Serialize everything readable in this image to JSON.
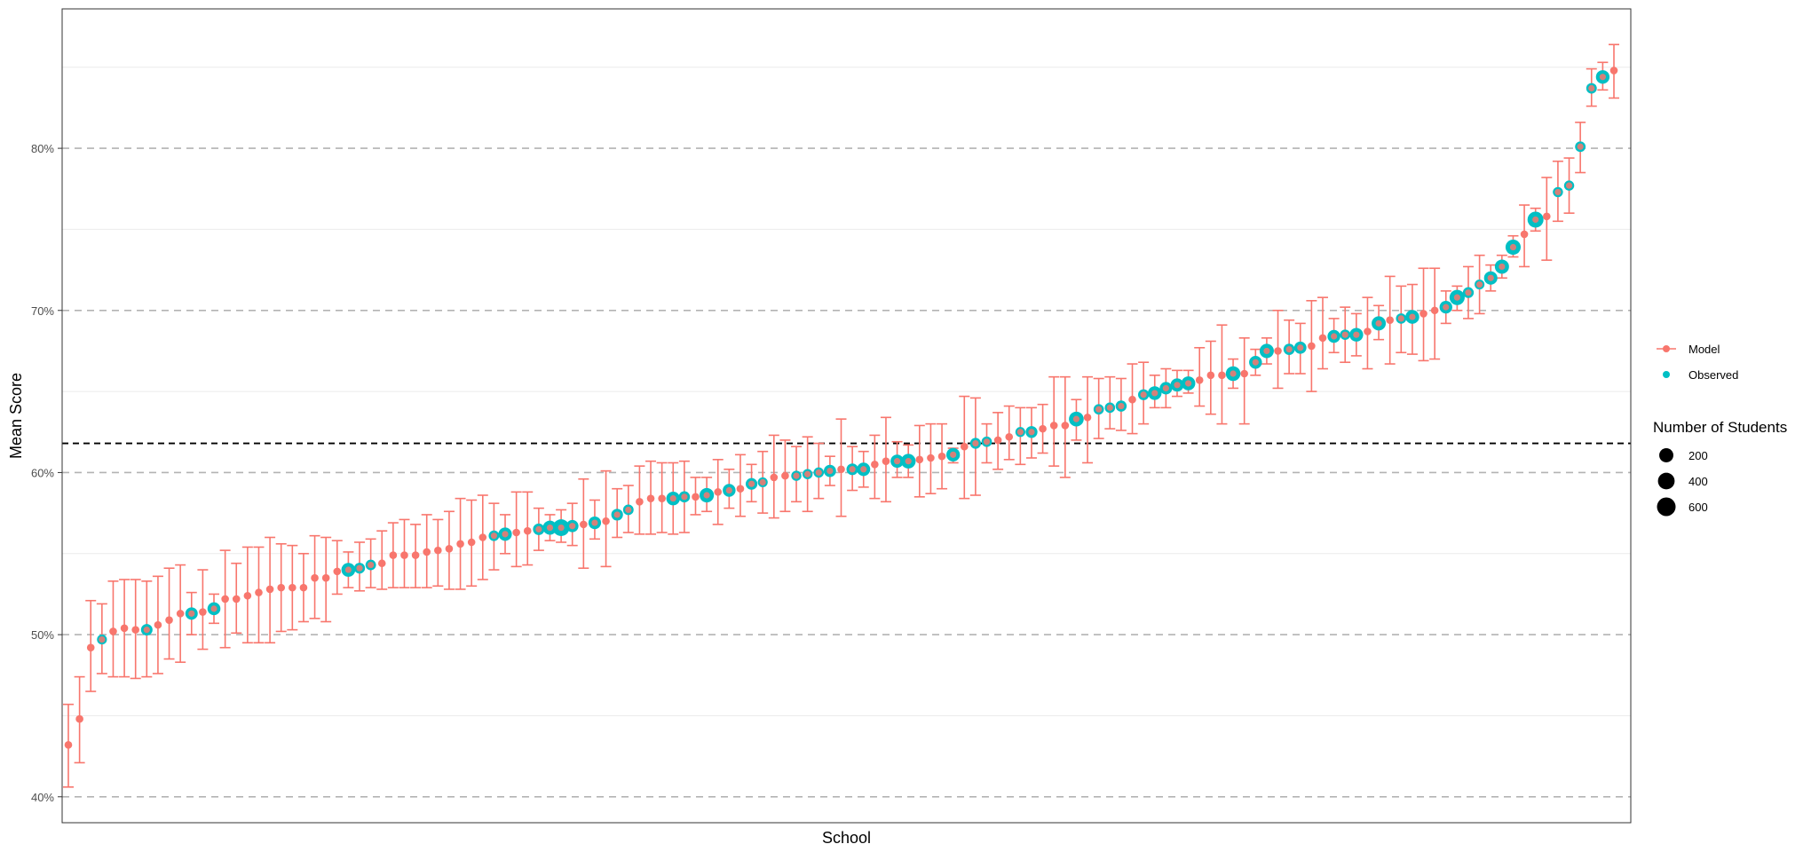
{
  "chart_data": {
    "type": "scatter",
    "xlabel": "School",
    "ylabel": "Mean Score",
    "ylim": [
      38.4,
      88.6
    ],
    "yticks": [
      40,
      50,
      60,
      70,
      80
    ],
    "ytick_labels": [
      "40%",
      "50%",
      "60%",
      "70%",
      "80%"
    ],
    "grid": "horizontal",
    "reference_line": 61.8,
    "legend_position": "right",
    "series": [
      {
        "name": "Model",
        "color": "#F8766D"
      },
      {
        "name": "Observed",
        "color": "#00BFC4"
      }
    ],
    "size_legend": {
      "title": "Number of Students",
      "breaks": [
        200,
        400,
        600
      ],
      "labels": [
        "200",
        "400",
        "600"
      ]
    },
    "model": [
      43.2,
      44.8,
      49.2,
      49.7,
      50.2,
      50.4,
      50.3,
      50.3,
      50.6,
      50.9,
      51.3,
      51.3,
      51.4,
      51.6,
      52.2,
      52.2,
      52.4,
      52.6,
      52.8,
      52.9,
      52.9,
      52.9,
      53.5,
      53.5,
      53.9,
      54.0,
      54.1,
      54.3,
      54.4,
      54.9,
      54.9,
      54.9,
      55.1,
      55.2,
      55.3,
      55.6,
      55.7,
      56.0,
      56.1,
      56.2,
      56.3,
      56.4,
      56.5,
      56.6,
      56.6,
      56.7,
      56.8,
      56.9,
      57.0,
      57.4,
      57.7,
      58.2,
      58.4,
      58.4,
      58.4,
      58.5,
      58.5,
      58.6,
      58.8,
      58.9,
      59.0,
      59.3,
      59.4,
      59.7,
      59.8,
      59.8,
      59.9,
      60.0,
      60.1,
      60.2,
      60.2,
      60.2,
      60.5,
      60.7,
      60.7,
      60.7,
      60.8,
      60.9,
      61.0,
      61.1,
      61.6,
      61.8,
      61.9,
      62.0,
      62.2,
      62.5,
      62.5,
      62.7,
      62.9,
      62.9,
      63.3,
      63.4,
      63.9,
      64.0,
      64.1,
      64.5,
      64.8,
      64.9,
      65.2,
      65.4,
      65.5,
      65.7,
      66.0,
      66.0,
      66.1,
      66.1,
      66.8,
      67.5,
      67.5,
      67.6,
      67.7,
      67.8,
      68.3,
      68.4,
      68.5,
      68.5,
      68.7,
      69.2,
      69.4,
      69.5,
      69.6,
      69.8,
      70.0,
      70.2,
      70.8,
      71.1,
      71.6,
      72.0,
      72.7,
      73.9,
      74.7,
      75.6,
      75.8,
      77.3,
      77.7,
      80.1,
      83.7,
      84.4,
      84.8
    ],
    "lower": [
      40.6,
      42.1,
      46.5,
      47.6,
      47.4,
      47.4,
      47.3,
      47.4,
      47.6,
      48.5,
      48.3,
      50.0,
      49.1,
      50.7,
      49.2,
      50.1,
      49.5,
      49.5,
      49.5,
      50.2,
      50.3,
      50.8,
      51.0,
      50.8,
      52.5,
      52.9,
      52.7,
      52.9,
      52.8,
      52.9,
      52.9,
      52.9,
      52.9,
      53.0,
      52.8,
      52.8,
      53.0,
      53.4,
      54.0,
      55.0,
      54.2,
      54.3,
      55.2,
      55.8,
      55.7,
      55.5,
      54.1,
      55.9,
      54.2,
      56.0,
      56.3,
      56.2,
      56.2,
      56.3,
      56.2,
      56.3,
      57.4,
      57.6,
      56.8,
      57.8,
      57.3,
      58.2,
      57.5,
      57.2,
      57.6,
      58.2,
      57.6,
      58.4,
      59.2,
      57.3,
      58.9,
      59.1,
      58.4,
      58.2,
      59.7,
      59.7,
      58.5,
      58.7,
      59.0,
      60.6,
      58.4,
      58.6,
      60.6,
      60.2,
      60.8,
      60.5,
      60.9,
      61.2,
      60.4,
      59.7,
      62.0,
      60.6,
      62.1,
      62.7,
      62.6,
      62.4,
      63.0,
      64.0,
      64.0,
      64.7,
      64.9,
      64.1,
      63.6,
      63.0,
      65.2,
      63.0,
      66.0,
      66.7,
      65.2,
      66.1,
      66.1,
      65.0,
      66.4,
      67.4,
      66.8,
      67.2,
      66.4,
      68.2,
      66.7,
      67.4,
      67.3,
      66.9,
      67.0,
      69.2,
      70.0,
      69.5,
      69.8,
      71.2,
      72.0,
      73.3,
      72.7,
      74.9,
      73.1,
      75.5,
      76.0,
      78.5,
      82.6,
      83.6,
      83.1
    ],
    "upper": [
      45.7,
      47.4,
      52.1,
      51.9,
      53.3,
      53.4,
      53.4,
      53.3,
      53.6,
      54.1,
      54.3,
      52.6,
      54.0,
      52.5,
      55.2,
      54.4,
      55.4,
      55.4,
      56.0,
      55.6,
      55.5,
      55.0,
      56.1,
      56.0,
      55.8,
      55.1,
      55.7,
      55.9,
      56.4,
      56.9,
      57.1,
      56.8,
      57.4,
      57.1,
      57.6,
      58.4,
      58.3,
      58.6,
      58.1,
      57.4,
      58.8,
      58.8,
      57.8,
      57.4,
      57.7,
      58.1,
      59.6,
      58.3,
      60.1,
      59.0,
      59.2,
      60.4,
      60.7,
      60.6,
      60.6,
      60.7,
      59.7,
      59.7,
      60.8,
      60.2,
      61.1,
      60.5,
      61.3,
      62.3,
      62.0,
      61.6,
      62.2,
      61.8,
      61.0,
      63.3,
      61.6,
      61.3,
      62.3,
      63.4,
      61.9,
      61.7,
      62.9,
      63.0,
      63.0,
      61.5,
      64.7,
      64.6,
      63.0,
      63.7,
      64.1,
      64.0,
      64.0,
      64.2,
      65.9,
      65.9,
      64.5,
      65.9,
      65.8,
      65.9,
      65.8,
      66.7,
      66.8,
      66.0,
      66.4,
      66.3,
      66.3,
      67.7,
      68.1,
      69.1,
      67.0,
      68.3,
      67.6,
      68.3,
      70.0,
      69.4,
      69.2,
      70.6,
      70.8,
      69.5,
      70.2,
      69.8,
      70.8,
      70.3,
      72.1,
      71.5,
      71.6,
      72.6,
      72.6,
      71.2,
      71.5,
      72.7,
      73.4,
      72.8,
      73.4,
      74.6,
      76.5,
      76.3,
      78.2,
      79.2,
      79.4,
      81.6,
      84.9,
      85.3,
      86.4
    ],
    "observed": [
      null,
      null,
      null,
      49.7,
      null,
      null,
      null,
      50.3,
      null,
      null,
      null,
      51.3,
      null,
      51.6,
      null,
      null,
      null,
      null,
      null,
      null,
      null,
      null,
      null,
      null,
      null,
      54.0,
      54.1,
      54.3,
      null,
      null,
      null,
      null,
      null,
      null,
      null,
      null,
      null,
      null,
      56.1,
      56.2,
      null,
      null,
      56.5,
      56.6,
      56.6,
      56.7,
      null,
      56.9,
      null,
      57.4,
      57.7,
      null,
      null,
      null,
      58.4,
      58.5,
      null,
      58.6,
      null,
      58.9,
      null,
      59.3,
      59.4,
      null,
      null,
      59.8,
      59.9,
      60.0,
      60.1,
      null,
      60.2,
      60.2,
      null,
      null,
      60.7,
      60.7,
      null,
      null,
      null,
      61.1,
      null,
      61.8,
      61.9,
      null,
      null,
      62.5,
      62.5,
      null,
      null,
      null,
      63.3,
      null,
      63.9,
      64.0,
      64.1,
      null,
      64.8,
      64.9,
      65.2,
      65.4,
      65.5,
      null,
      null,
      null,
      66.1,
      null,
      66.8,
      67.5,
      null,
      67.6,
      67.7,
      null,
      null,
      68.4,
      68.5,
      68.5,
      null,
      69.2,
      null,
      69.5,
      69.6,
      null,
      null,
      70.2,
      70.8,
      71.1,
      71.6,
      72.0,
      72.7,
      73.9,
      null,
      75.6,
      null,
      77.3,
      77.7,
      80.1,
      83.7,
      84.4,
      null
    ],
    "n_students": [
      null,
      null,
      null,
      60,
      null,
      null,
      null,
      150,
      null,
      null,
      null,
      210,
      null,
      260,
      null,
      null,
      null,
      null,
      null,
      null,
      null,
      null,
      null,
      null,
      null,
      350,
      110,
      90,
      null,
      null,
      null,
      null,
      null,
      null,
      null,
      null,
      null,
      null,
      90,
      300,
      null,
      null,
      150,
      380,
      700,
      200,
      null,
      230,
      null,
      160,
      90,
      null,
      null,
      null,
      330,
      130,
      null,
      400,
      null,
      250,
      null,
      160,
      60,
      null,
      null,
      70,
      70,
      80,
      200,
      null,
      160,
      300,
      null,
      null,
      280,
      430,
      null,
      null,
      null,
      320,
      null,
      110,
      80,
      null,
      null,
      60,
      170,
      null,
      null,
      null,
      450,
      null,
      80,
      80,
      120,
      null,
      110,
      330,
      220,
      280,
      350,
      null,
      null,
      null,
      440,
      null,
      250,
      390,
      null,
      130,
      200,
      null,
      null,
      250,
      80,
      330,
      null,
      380,
      null,
      80,
      340,
      null,
      null,
      240,
      500,
      110,
      60,
      300,
      380,
      500,
      null,
      600,
      null,
      70,
      70,
      90,
      90,
      320,
      null
    ]
  }
}
